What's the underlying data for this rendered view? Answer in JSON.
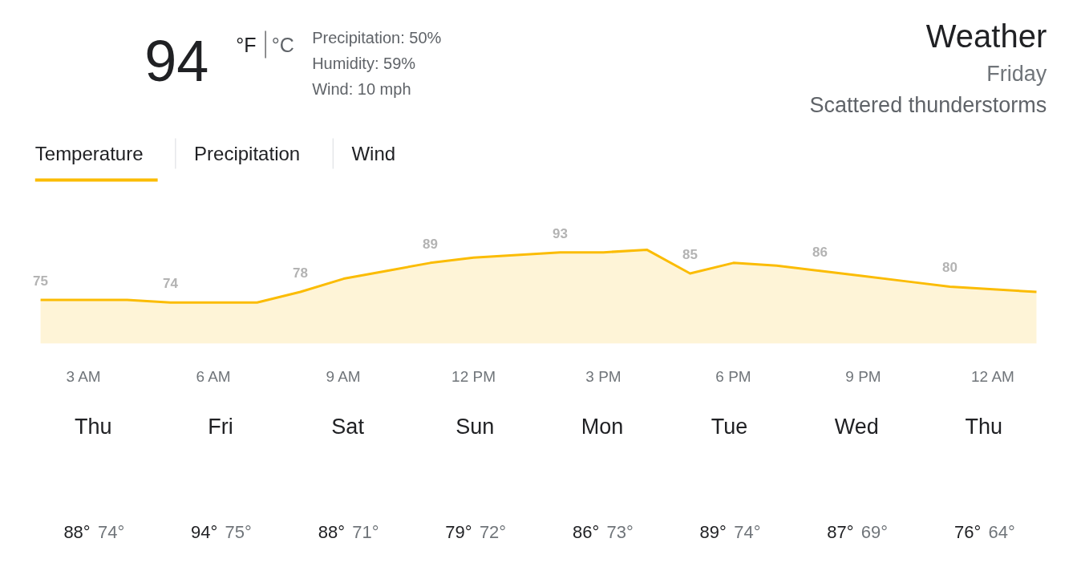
{
  "chart_data": {
    "type": "area",
    "title": "Weather",
    "subtitle": "Friday",
    "color": "#fbbc04",
    "categories": [
      null,
      "3 AM",
      null,
      null,
      "6 AM",
      null,
      null,
      "9 AM",
      null,
      null,
      "12 PM",
      null,
      null,
      "3 PM",
      null,
      null,
      "6 PM",
      null,
      null,
      "9 PM",
      null,
      null,
      "12 AM",
      null
    ],
    "values": [
      75,
      75,
      75,
      74,
      74,
      74,
      78,
      83,
      86,
      89,
      91,
      92,
      93,
      93,
      94,
      85,
      89,
      88,
      86,
      84,
      82,
      80,
      79,
      78
    ],
    "value_labels": [
      "75",
      null,
      null,
      "74",
      null,
      null,
      "78",
      null,
      null,
      "89",
      null,
      null,
      "93",
      null,
      null,
      "85",
      null,
      null,
      "86",
      null,
      null,
      "80",
      null,
      null
    ],
    "tick_labels": "x",
    "grid": false,
    "marker": "none",
    "annotations": [
      "94",
      "°F",
      "°C",
      "Precipitation: 50%",
      "Humidity: 59%",
      "Wind: 10 mph",
      "Scattered thunderstorms",
      "Temperature",
      "Precipitation",
      "Wind",
      "Thu",
      "88°",
      "74°",
      "Fri",
      "94°",
      "75°",
      "Sat",
      "88°",
      "71°",
      "Sun",
      "79°",
      "72°",
      "Mon",
      "86°",
      "73°",
      "Tue",
      "89°",
      "74°",
      "Wed",
      "87°",
      "69°",
      "Thu",
      "76°",
      "64°"
    ]
  }
}
